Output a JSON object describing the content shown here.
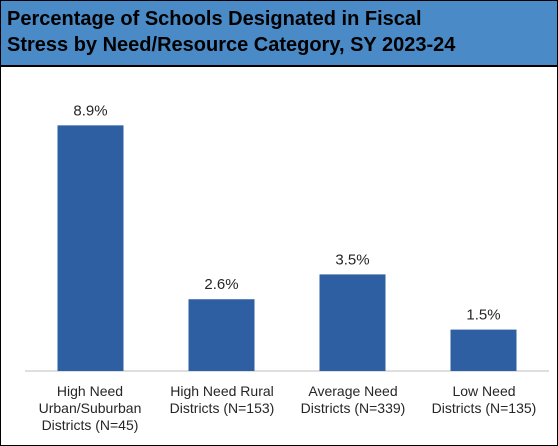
{
  "title_lines": [
    "Percentage of Schools Designated in Fiscal",
    "Stress by Need/Resource Category, SY 2023-24"
  ],
  "colors": {
    "title_bg": "#4a8ac6",
    "bar": "#2e5fa3",
    "axis": "#bfbfbf",
    "text": "#262626"
  },
  "chart_data": {
    "type": "bar",
    "title": "Percentage of Schools Designated in Fiscal Stress by Need/Resource Category, SY 2023-24",
    "categories": [
      [
        "High Need",
        "Urban/Suburban",
        "Districts (N=45)"
      ],
      [
        "High Need Rural",
        "Districts (N=153)"
      ],
      [
        "Average Need",
        "Districts (N=339)"
      ],
      [
        "Low Need",
        "Districts (N=135)"
      ]
    ],
    "values": [
      8.9,
      2.6,
      3.5,
      1.5
    ],
    "data_labels": [
      "8.9%",
      "2.6%",
      "3.5%",
      "1.5%"
    ],
    "ylim": [
      0,
      10
    ],
    "grid": false,
    "legend": "none"
  }
}
